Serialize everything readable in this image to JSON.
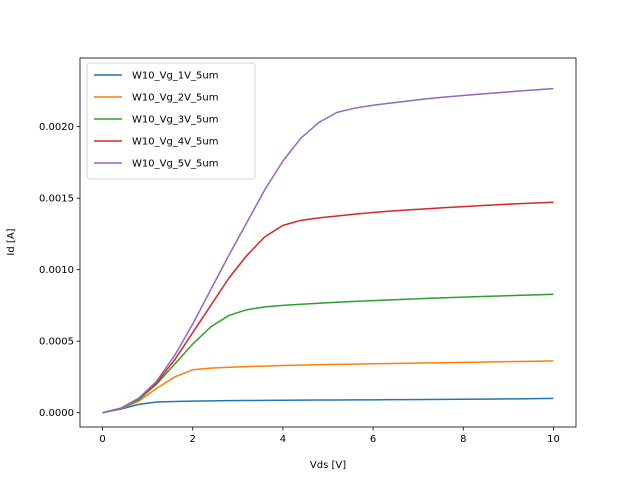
{
  "chart_data": {
    "type": "line",
    "title": "",
    "xlabel": "Vds [V]",
    "ylabel": "Id [A]",
    "xlim": [
      -0.5,
      10.5
    ],
    "ylim": [
      -0.0001,
      0.00248
    ],
    "xticks": [
      0,
      2,
      4,
      6,
      8,
      10
    ],
    "xtick_labels": [
      "0",
      "2",
      "4",
      "6",
      "8",
      "10"
    ],
    "yticks": [
      0,
      0.0005,
      0.001,
      0.0015,
      0.002
    ],
    "ytick_labels": [
      "0.0000",
      "0.0005",
      "0.0010",
      "0.0015",
      "0.0020"
    ],
    "grid": false,
    "legend_position": "top-left",
    "x": [
      0,
      0.4,
      0.8,
      1.2,
      1.6,
      2.0,
      2.4,
      2.8,
      3.2,
      3.6,
      4.0,
      4.4,
      4.8,
      5.2,
      5.6,
      6.0,
      6.4,
      6.8,
      7.2,
      7.6,
      8.0,
      8.4,
      8.8,
      9.2,
      9.6,
      10.0
    ],
    "series": [
      {
        "name": "W10_Vg_1V_5um",
        "color": "#1f77b4",
        "values": [
          0,
          2.5e-05,
          5.8e-05,
          7.5e-05,
          7.8e-05,
          8.1e-05,
          8.3e-05,
          8.4e-05,
          8.5e-05,
          8.6e-05,
          8.7e-05,
          8.8e-05,
          8.9e-05,
          8.9e-05,
          9e-05,
          9e-05,
          9.1e-05,
          9.1e-05,
          9.2e-05,
          9.3e-05,
          9.4e-05,
          9.5e-05,
          9.6e-05,
          9.7e-05,
          9.8e-05,
          0.0001
        ]
      },
      {
        "name": "W10_Vg_2V_5um",
        "color": "#ff7f0e",
        "values": [
          0,
          2.8e-05,
          8e-05,
          0.00017,
          0.00025,
          0.0003,
          0.000312,
          0.000318,
          0.000322,
          0.000326,
          0.00033,
          0.000333,
          0.000336,
          0.000338,
          0.00034,
          0.000342,
          0.000344,
          0.000346,
          0.000348,
          0.00035,
          0.000352,
          0.000354,
          0.000356,
          0.000358,
          0.00036,
          0.000362
        ]
      },
      {
        "name": "W10_Vg_3V_5um",
        "color": "#2ca02c",
        "values": [
          0,
          3e-05,
          9e-05,
          0.0002,
          0.00034,
          0.00048,
          0.0006,
          0.00068,
          0.00072,
          0.00074,
          0.00075,
          0.000758,
          0.000765,
          0.000772,
          0.000778,
          0.000784,
          0.000789,
          0.000794,
          0.000799,
          0.000804,
          0.000808,
          0.000812,
          0.000816,
          0.00082,
          0.000824,
          0.000828
        ]
      },
      {
        "name": "W10_Vg_4V_5um",
        "color": "#d62728",
        "values": [
          0,
          3e-05,
          0.0001,
          0.00021,
          0.00037,
          0.00056,
          0.00075,
          0.00094,
          0.0011,
          0.00123,
          0.00131,
          0.001345,
          0.001362,
          0.001375,
          0.001388,
          0.0014,
          0.00141,
          0.001418,
          0.001426,
          0.001434,
          0.001441,
          0.001448,
          0.001455,
          0.001461,
          0.001466,
          0.001471
        ]
      },
      {
        "name": "W10_Vg_5V_5um",
        "color": "#9467bd",
        "values": [
          0,
          3e-05,
          0.0001,
          0.00022,
          0.0004,
          0.00062,
          0.00086,
          0.0011,
          0.00133,
          0.00156,
          0.00176,
          0.00192,
          0.00203,
          0.0021,
          0.00213,
          0.00215,
          0.002165,
          0.00218,
          0.002195,
          0.002207,
          0.002218,
          0.002228,
          0.002238,
          0.002248,
          0.002257,
          0.002266
        ]
      }
    ]
  }
}
